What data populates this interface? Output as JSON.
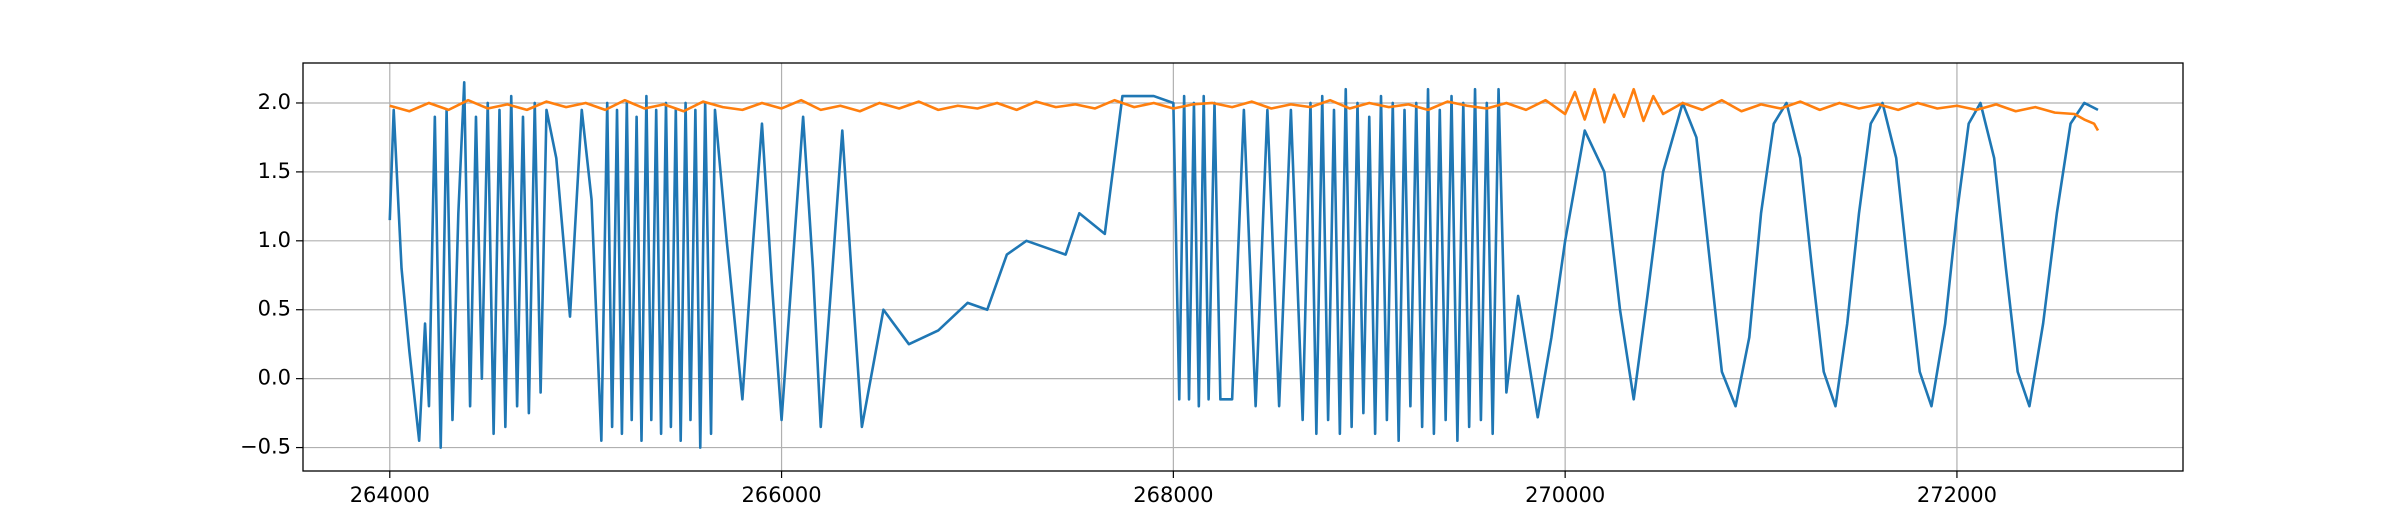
{
  "chart_data": {
    "type": "line",
    "xlim": [
      263557,
      273154
    ],
    "ylim": [
      -0.67,
      2.29
    ],
    "xticks": [
      264000,
      266000,
      268000,
      270000,
      272000
    ],
    "yticks": [
      {
        "value": -0.5,
        "label": "−0.5"
      },
      {
        "value": 0.0,
        "label": "0.0"
      },
      0.5,
      {
        "value": 1.0,
        "label": "1.0"
      },
      1.5,
      {
        "value": 2.0,
        "label": "2.0"
      }
    ],
    "grid": true,
    "series": [
      {
        "color": "#1f77b4",
        "x": [
          264000,
          264020,
          264060,
          264100,
          264150,
          264180,
          264200,
          264230,
          264260,
          264290,
          264320,
          264350,
          264380,
          264410,
          264440,
          264470,
          264500,
          264530,
          264560,
          264590,
          264620,
          264650,
          264680,
          264710,
          264740,
          264770,
          264800,
          264850,
          264920,
          264980,
          265030,
          265080,
          265110,
          265135,
          265160,
          265185,
          265210,
          265235,
          265260,
          265285,
          265310,
          265335,
          265360,
          265385,
          265410,
          265435,
          265460,
          265485,
          265510,
          265535,
          265560,
          265585,
          265610,
          265640,
          265660,
          265720,
          265800,
          265850,
          265900,
          265950,
          266000,
          266060,
          266110,
          266160,
          266200,
          266260,
          266310,
          266360,
          266410,
          266520,
          266650,
          266800,
          266950,
          267050,
          267150,
          267250,
          267350,
          267450,
          267520,
          267650,
          267740,
          267900,
          268000,
          268030,
          268055,
          268080,
          268105,
          268130,
          268155,
          268180,
          268210,
          268240,
          268300,
          268360,
          268420,
          268480,
          268540,
          268600,
          268660,
          268700,
          268730,
          268760,
          268790,
          268820,
          268850,
          268880,
          268910,
          268940,
          268970,
          269000,
          269030,
          269060,
          269090,
          269120,
          269150,
          269180,
          269210,
          269240,
          269270,
          269300,
          269330,
          269360,
          269390,
          269420,
          269450,
          269480,
          269510,
          269540,
          269570,
          269600,
          269630,
          269660,
          269700,
          269760,
          269860,
          269930,
          270000,
          270100,
          270200,
          270280,
          270350,
          270420,
          270500,
          270600,
          270670,
          270735,
          270800,
          270870,
          270940,
          271000,
          271065,
          271130,
          271200,
          271260,
          271320,
          271380,
          271440,
          271500,
          271560,
          271620,
          271690,
          271750,
          271810,
          271870,
          271940,
          272000,
          272060,
          272120,
          272190,
          272250,
          272310,
          272370,
          272440,
          272510,
          272580,
          272650,
          272720
        ],
        "values": [
          1.15,
          1.95,
          0.8,
          0.2,
          -0.45,
          0.4,
          -0.2,
          1.9,
          -0.5,
          1.95,
          -0.3,
          1.2,
          2.15,
          -0.2,
          1.9,
          0.0,
          2.0,
          -0.4,
          1.95,
          -0.35,
          2.05,
          -0.2,
          1.9,
          -0.25,
          2.0,
          -0.1,
          1.95,
          1.6,
          0.45,
          1.95,
          1.3,
          -0.45,
          2.0,
          -0.35,
          1.95,
          -0.4,
          2.0,
          -0.3,
          1.9,
          -0.45,
          2.05,
          -0.3,
          1.95,
          -0.4,
          2.0,
          -0.35,
          1.95,
          -0.45,
          2.0,
          -0.3,
          1.95,
          -0.5,
          2.0,
          -0.4,
          1.95,
          1.0,
          -0.15,
          0.9,
          1.85,
          0.7,
          -0.3,
          0.9,
          1.9,
          0.8,
          -0.35,
          0.8,
          1.8,
          0.7,
          -0.35,
          0.5,
          0.25,
          0.35,
          0.55,
          0.5,
          0.9,
          1.0,
          0.95,
          0.9,
          1.2,
          1.05,
          2.05,
          2.05,
          2.0,
          -0.15,
          2.05,
          -0.15,
          2.0,
          -0.2,
          2.05,
          -0.15,
          2.0,
          -0.15,
          -0.15,
          1.95,
          -0.2,
          1.95,
          -0.2,
          1.95,
          -0.3,
          2.0,
          -0.4,
          2.05,
          -0.3,
          1.95,
          -0.4,
          2.1,
          -0.35,
          2.0,
          -0.25,
          1.9,
          -0.4,
          2.05,
          -0.3,
          2.0,
          -0.45,
          1.95,
          -0.2,
          2.0,
          -0.35,
          2.1,
          -0.4,
          1.95,
          -0.3,
          2.05,
          -0.45,
          2.0,
          -0.35,
          2.1,
          -0.3,
          2.0,
          -0.4,
          2.1,
          -0.1,
          0.6,
          -0.28,
          0.3,
          1.0,
          1.8,
          1.5,
          0.5,
          -0.15,
          0.6,
          1.5,
          2.0,
          1.75,
          0.9,
          0.05,
          -0.2,
          0.3,
          1.2,
          1.85,
          2.0,
          1.6,
          0.8,
          0.05,
          -0.2,
          0.4,
          1.2,
          1.85,
          2.0,
          1.6,
          0.8,
          0.05,
          -0.2,
          0.4,
          1.2,
          1.85,
          2.0,
          1.6,
          0.8,
          0.05,
          -0.2,
          0.4,
          1.2,
          1.85,
          2.0,
          1.95
        ]
      },
      {
        "color": "#ff7f0e",
        "x": [
          264000,
          264100,
          264200,
          264300,
          264400,
          264500,
          264600,
          264700,
          264800,
          264900,
          265000,
          265100,
          265200,
          265300,
          265400,
          265500,
          265600,
          265700,
          265800,
          265900,
          266000,
          266100,
          266200,
          266300,
          266400,
          266500,
          266600,
          266700,
          266800,
          266900,
          267000,
          267100,
          267200,
          267300,
          267400,
          267500,
          267600,
          267700,
          267800,
          267900,
          268000,
          268100,
          268200,
          268300,
          268400,
          268500,
          268600,
          268700,
          268800,
          268900,
          269000,
          269100,
          269200,
          269300,
          269400,
          269500,
          269600,
          269700,
          269800,
          269900,
          270000,
          270050,
          270100,
          270150,
          270200,
          270250,
          270300,
          270350,
          270400,
          270450,
          270500,
          270600,
          270700,
          270800,
          270900,
          271000,
          271100,
          271200,
          271300,
          271400,
          271500,
          271600,
          271700,
          271800,
          271900,
          272000,
          272100,
          272200,
          272300,
          272400,
          272500,
          272600,
          272650,
          272700,
          272720
        ],
        "values": [
          1.98,
          1.94,
          2.0,
          1.95,
          2.02,
          1.96,
          1.99,
          1.95,
          2.01,
          1.97,
          2.0,
          1.95,
          2.02,
          1.96,
          1.99,
          1.94,
          2.01,
          1.97,
          1.95,
          2.0,
          1.96,
          2.02,
          1.95,
          1.98,
          1.94,
          2.0,
          1.96,
          2.01,
          1.95,
          1.98,
          1.96,
          2.0,
          1.95,
          2.01,
          1.97,
          1.99,
          1.96,
          2.02,
          1.97,
          2.0,
          1.96,
          1.99,
          2.0,
          1.97,
          2.01,
          1.96,
          1.99,
          1.97,
          2.02,
          1.96,
          2.0,
          1.97,
          1.99,
          1.95,
          2.01,
          1.98,
          1.96,
          2.0,
          1.95,
          2.02,
          1.92,
          2.08,
          1.88,
          2.1,
          1.86,
          2.06,
          1.9,
          2.1,
          1.87,
          2.05,
          1.92,
          2.0,
          1.95,
          2.02,
          1.94,
          1.99,
          1.96,
          2.01,
          1.95,
          2.0,
          1.96,
          1.99,
          1.95,
          2.0,
          1.96,
          1.98,
          1.95,
          1.99,
          1.94,
          1.97,
          1.93,
          1.92,
          1.88,
          1.85,
          1.8
        ]
      }
    ]
  }
}
